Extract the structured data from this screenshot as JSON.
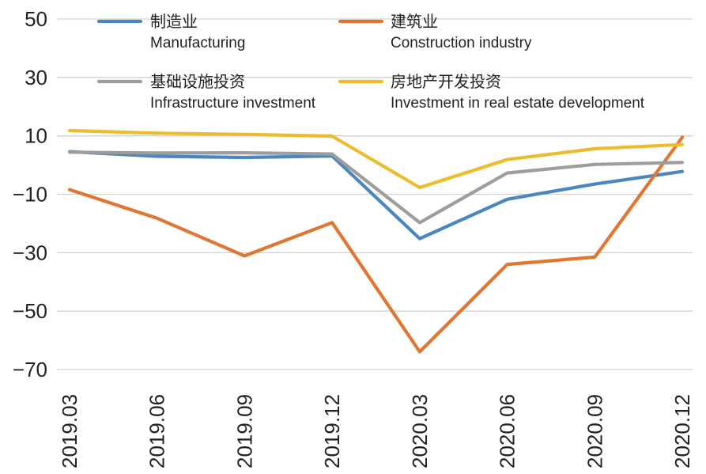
{
  "chart_data": {
    "type": "line",
    "title": "",
    "xlabel": "",
    "ylabel": "",
    "categories": [
      "2019.03",
      "2019.06",
      "2019.09",
      "2019.12",
      "2020.03",
      "2020.06",
      "2020.09",
      "2020.12"
    ],
    "ylim": [
      -70,
      50
    ],
    "yticks": [
      50,
      30,
      10,
      -10,
      -30,
      -50,
      -70
    ],
    "ytick_labels": [
      "50",
      "30",
      "10",
      "−10",
      "−30",
      "−50",
      "−70"
    ],
    "grid": true,
    "legend_position": "top",
    "series": [
      {
        "name_cn": "制造业",
        "name_en": "Manufacturing",
        "color": "#4a86c0",
        "values": [
          4.6,
          3.0,
          2.6,
          3.1,
          -25.2,
          -11.7,
          -6.5,
          -2.2
        ]
      },
      {
        "name_cn": "建筑业",
        "name_en": "Construction industry",
        "color": "#e07631",
        "values": [
          -8.4,
          -18.2,
          -31.1,
          -19.7,
          -63.9,
          -34.0,
          -31.5,
          9.5
        ]
      },
      {
        "name_cn": "基础设施投资",
        "name_en": "Infrastructure investment",
        "color": "#9d9d9d",
        "values": [
          4.4,
          4.1,
          4.2,
          3.8,
          -19.7,
          -2.7,
          0.2,
          0.9
        ]
      },
      {
        "name_cn": "房地产开发投资",
        "name_en": "Investment in real estate development",
        "color": "#ecbc2c",
        "values": [
          11.8,
          10.9,
          10.5,
          9.9,
          -7.7,
          1.9,
          5.6,
          7.0
        ]
      }
    ]
  }
}
